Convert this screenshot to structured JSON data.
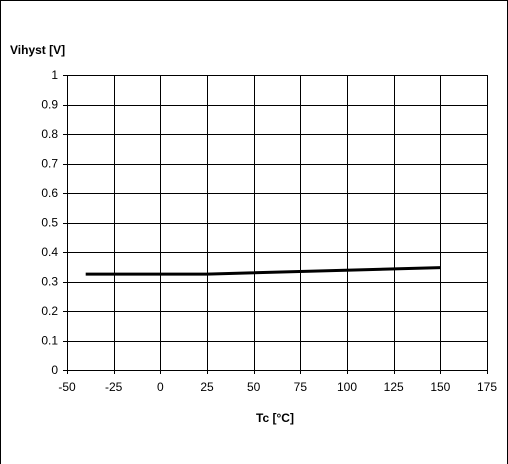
{
  "chart_data": {
    "type": "line",
    "title": "",
    "xlabel": "Tc [°C]",
    "ylabel": "Vihyst [V]",
    "xlim": [
      -50,
      175
    ],
    "ylim": [
      0,
      1
    ],
    "x_ticks": [
      "-50",
      "-25",
      "0",
      "25",
      "50",
      "75",
      "100",
      "125",
      "150",
      "175"
    ],
    "y_ticks": [
      "0",
      "0.1",
      "0.2",
      "0.3",
      "0.4",
      "0.5",
      "0.6",
      "0.7",
      "0.8",
      "0.9",
      "1"
    ],
    "x_tick_values": [
      -50,
      -25,
      0,
      25,
      50,
      75,
      100,
      125,
      150,
      175
    ],
    "y_tick_values": [
      0,
      0.1,
      0.2,
      0.3,
      0.4,
      0.5,
      0.6,
      0.7,
      0.8,
      0.9,
      1
    ],
    "grid": true,
    "legend": "none",
    "series": [
      {
        "color": "#000000",
        "x": [
          -40,
          25,
          150
        ],
        "y": [
          0.325,
          0.325,
          0.347
        ]
      }
    ]
  }
}
